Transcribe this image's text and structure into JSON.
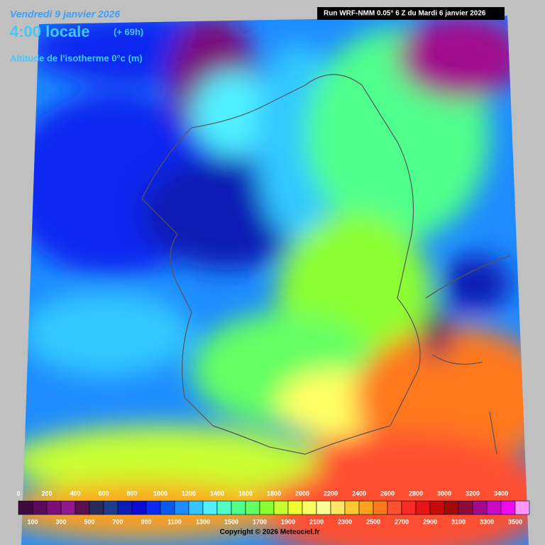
{
  "header": {
    "date": "Vendredi 9 janvier 2026",
    "time": "4:00 locale",
    "lead": "(+ 69h)",
    "field": "Altitude de l'isotherme 0°c (m)",
    "run": "Run WRF-NMM 0.05° 6 Z du Mardi 6 janvier 2026"
  },
  "legend": {
    "top_labels": [
      0,
      200,
      400,
      600,
      800,
      1000,
      1200,
      1400,
      1600,
      1800,
      2000,
      2200,
      2400,
      2600,
      2800,
      3000,
      3200,
      3400
    ],
    "bottom_labels": [
      100,
      300,
      500,
      700,
      900,
      1100,
      1300,
      1500,
      1700,
      1900,
      2100,
      2300,
      2500,
      2700,
      2900,
      3100,
      3300,
      3500
    ],
    "colors": [
      "#3c0a3c",
      "#5a0a5a",
      "#7a0f7a",
      "#8c1a8c",
      "#5a1050",
      "#2a2a5a",
      "#1e3c8c",
      "#0a1eb4",
      "#0a0ad2",
      "#0a28f0",
      "#0a5af0",
      "#1e8cff",
      "#32c8ff",
      "#50f0ff",
      "#50ffc8",
      "#50ff8c",
      "#64ff64",
      "#8cff32",
      "#c8ff32",
      "#f0ff32",
      "#ffff64",
      "#ffff96",
      "#ffe664",
      "#ffc832",
      "#ffa01e",
      "#ff781e",
      "#ff5032",
      "#ff2828",
      "#e61414",
      "#c80a0a",
      "#a00a0a",
      "#8c0a3c",
      "#a00a8c",
      "#c80ac8",
      "#f00af0",
      "#ff96ff"
    ]
  },
  "footer": {
    "copyright": "Copyright © 2026 Meteociel.fr"
  }
}
